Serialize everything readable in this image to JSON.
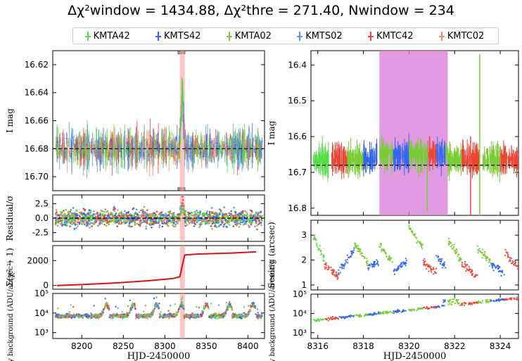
{
  "title": {
    "term1": "Δχ²window = 1434.88",
    "term2": "Δχ²thre = 271.40",
    "term3": "Nwindow = 234"
  },
  "legend": [
    {
      "name": "KMTA42",
      "color": "#55dd44"
    },
    {
      "name": "KMTS42",
      "color": "#3366ee"
    },
    {
      "name": "KMTA02",
      "color": "#77cc33"
    },
    {
      "name": "KMTS02",
      "color": "#5599ee"
    },
    {
      "name": "KMTC42",
      "color": "#ee4433"
    },
    {
      "name": "KMTC02",
      "color": "#ee8866"
    }
  ],
  "chart_data": [
    {
      "type": "scatter",
      "panel": "light-curve-full",
      "ylabel": "I mag",
      "y_inverted": true,
      "ylim": [
        16.71,
        16.61
      ],
      "yticks": [
        "16.62",
        "16.64",
        "16.66",
        "16.68",
        "16.70"
      ],
      "xlim": [
        8165,
        8420
      ],
      "baseline": 16.68,
      "highlight_window": [
        8318,
        8324
      ],
      "peak": {
        "x": 8321,
        "y": 16.64
      }
    },
    {
      "type": "scatter",
      "panel": "residual",
      "ylabel": "Residual/σ",
      "ylim": [
        -4,
        4
      ],
      "yticks": [
        "2.5",
        "0.0",
        "-2.5"
      ],
      "xlim": [
        8165,
        8420
      ],
      "baseline": 0
    },
    {
      "type": "line",
      "panel": "cumulative-chi2",
      "ylabel": "Σ(χ² − 1)",
      "ylim": [
        -300,
        3200
      ],
      "yticks": [
        "2000",
        "0"
      ],
      "xlim": [
        8165,
        8420
      ],
      "x": [
        8170,
        8200,
        8240,
        8280,
        8310,
        8318,
        8322,
        8324,
        8340,
        8380,
        8410
      ],
      "y": [
        0,
        70,
        200,
        380,
        560,
        700,
        1900,
        2450,
        2520,
        2600,
        2700
      ],
      "color": "#dd1111"
    },
    {
      "type": "scatter",
      "panel": "sky-background-full",
      "ylabel": "Sky background (ADU/arcsec²)",
      "y_log": true,
      "ylim": [
        500,
        100000
      ],
      "yticks": [
        "10⁵",
        "10⁴",
        "10³"
      ],
      "xlim": [
        8165,
        8420
      ],
      "xticks": [
        "8200",
        "8250",
        "8300",
        "8350",
        "8400"
      ],
      "xlabel": "HJD-2450000",
      "nights_peaks_x": [
        8230,
        8262,
        8290,
        8320,
        8350,
        8378,
        8406
      ]
    },
    {
      "type": "scatter",
      "panel": "light-curve-zoom",
      "ylabel": "I mag",
      "y_inverted": true,
      "ylim": [
        16.82,
        16.36
      ],
      "yticks": [
        "16.4",
        "16.5",
        "16.6",
        "16.7",
        "16.8"
      ],
      "xlim": [
        8315.7,
        8324.8
      ],
      "baseline": 16.68,
      "highlight_window": [
        8318.7,
        8321.7
      ]
    },
    {
      "type": "scatter",
      "panel": "seeing-zoom",
      "ylabel": "Seeing (arcsec)",
      "ylim": [
        0.8,
        3.6
      ],
      "yticks": [
        "3",
        "2",
        "1"
      ],
      "xlim": [
        8315.7,
        8324.8
      ]
    },
    {
      "type": "scatter",
      "panel": "sky-background-zoom",
      "ylabel": "Sky background (ADU/arcsec²)",
      "y_log": true,
      "ylim": [
        500,
        100000
      ],
      "yticks": [
        "10⁵",
        "10⁴",
        "10³"
      ],
      "xlim": [
        8315.7,
        8324.8
      ],
      "xticks": [
        "8316",
        "8318",
        "8320",
        "8322",
        "8324"
      ],
      "xlabel": "HJD-2450000"
    }
  ]
}
